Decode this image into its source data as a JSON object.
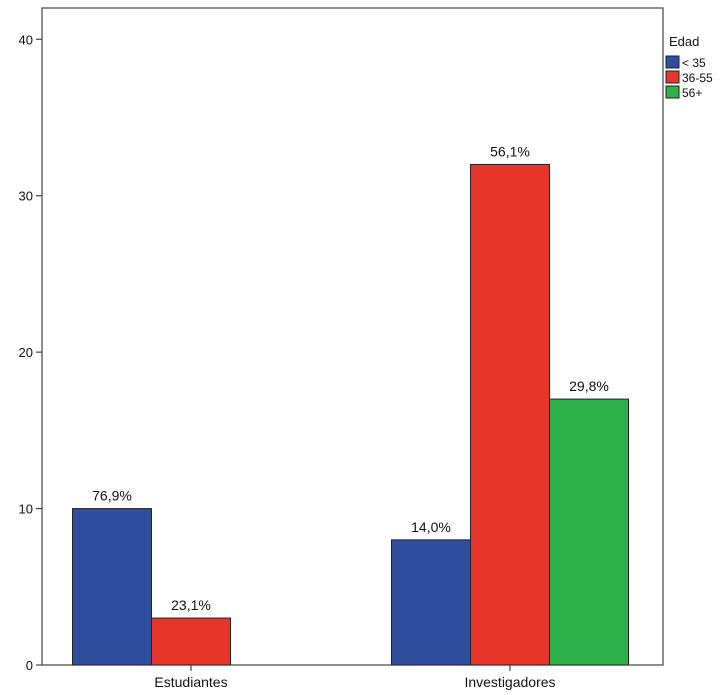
{
  "chart_data": {
    "type": "bar",
    "categories": [
      "Estudiantes",
      "Investigadores"
    ],
    "ylim": [
      0,
      42
    ],
    "yticks": [
      0,
      10,
      20,
      30,
      40
    ],
    "grid": false,
    "legend_position": "top-right",
    "legend_title": "Edad",
    "series": [
      {
        "name": "< 35",
        "color": "#2f4f9e",
        "values": [
          10,
          8
        ],
        "labels": [
          "76,9%",
          "14,0%"
        ]
      },
      {
        "name": "36-55",
        "color": "#e8352b",
        "values": [
          3,
          32
        ],
        "labels": [
          "23,1%",
          "56,1%"
        ]
      },
      {
        "name": "56+",
        "color": "#2eb04b",
        "values": [
          null,
          17
        ],
        "labels": [
          null,
          "29,8%"
        ]
      }
    ]
  }
}
